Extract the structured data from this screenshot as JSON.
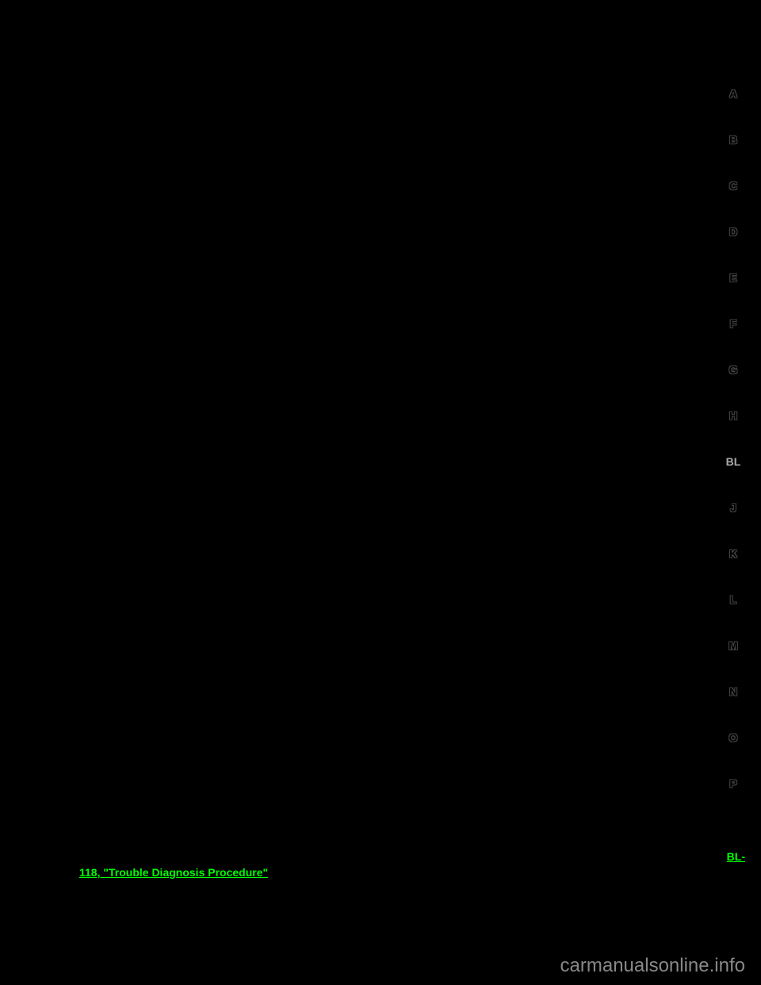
{
  "sidebar": {
    "items": [
      {
        "label": "A",
        "active": false
      },
      {
        "label": "B",
        "active": false
      },
      {
        "label": "C",
        "active": false
      },
      {
        "label": "D",
        "active": false
      },
      {
        "label": "E",
        "active": false
      },
      {
        "label": "F",
        "active": false
      },
      {
        "label": "G",
        "active": false
      },
      {
        "label": "H",
        "active": false
      },
      {
        "label": "BL",
        "active": true
      },
      {
        "label": "J",
        "active": false
      },
      {
        "label": "K",
        "active": false
      },
      {
        "label": "L",
        "active": false
      },
      {
        "label": "M",
        "active": false
      },
      {
        "label": "N",
        "active": false
      },
      {
        "label": "O",
        "active": false
      },
      {
        "label": "P",
        "active": false
      }
    ]
  },
  "links": {
    "link1": "BL-",
    "link2": "118, \"Trouble Diagnosis Procedure\""
  },
  "watermark": "carmanualsonline.info",
  "colors": {
    "background": "#000000",
    "link_color": "#00ff00",
    "active_sidebar": "#aaaaaa",
    "watermark_color": "#888888"
  }
}
